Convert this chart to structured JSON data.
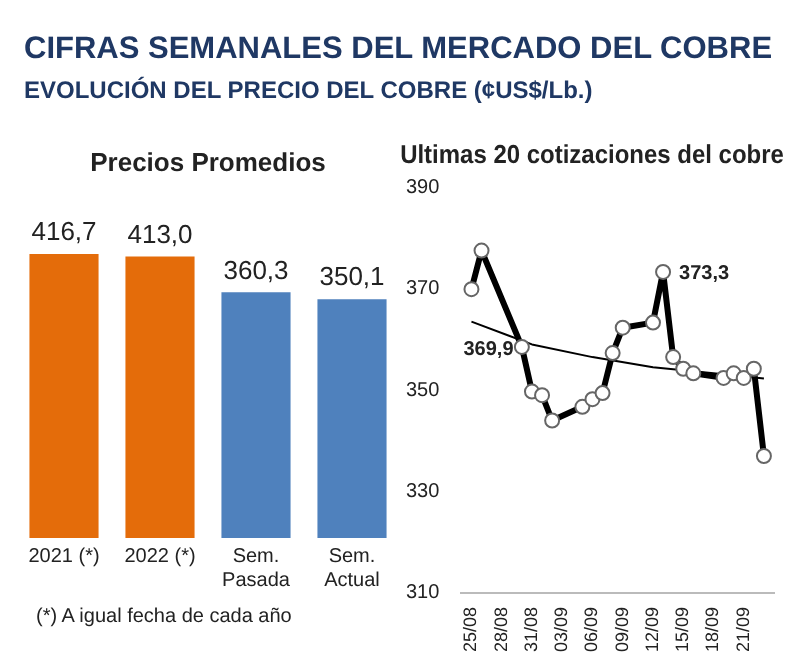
{
  "chart_data": [
    {
      "type": "other",
      "title": "CIFRAS SEMANALES DEL MERCADO DEL COBRE",
      "subtitle": "EVOLUCIÓN DEL PRECIO DEL COBRE (¢US$/Lb.)"
    },
    {
      "type": "bar",
      "title": "Precios Promedios",
      "categories": [
        "2021 (*)",
        "2022 (*)",
        "Sem. Pasada",
        "Sem. Actual"
      ],
      "values": [
        416.7,
        413.0,
        360.3,
        350.1
      ],
      "value_labels": [
        "416,7",
        "413,0",
        "360,3",
        "350,1"
      ],
      "colors": [
        "#e46c0a",
        "#e46c0a",
        "#4f81bd",
        "#4f81bd"
      ],
      "tick_labels": "x",
      "grid": false,
      "legend": false,
      "annotations": [
        "(*) A igual fecha de cada año"
      ]
    },
    {
      "type": "line",
      "title": "Ultimas 20 cotizaciones del cobre",
      "x": [
        "--08-25",
        "--08-26",
        "--08-30",
        "--08-31",
        "--09-01",
        "--09-02",
        "--09-05",
        "--09-06",
        "--09-07",
        "--09-08",
        "--09-09",
        "--09-12",
        "--09-13",
        "--09-14",
        "--09-15",
        "--09-16",
        "--09-19",
        "--09-20",
        "--09-21",
        "--09-22",
        "--09-23"
      ],
      "series": [
        {
          "type": "line",
          "color": "#000000",
          "marker": "circle",
          "values": [
            369.9,
            377.5,
            358.5,
            349.7,
            349,
            344,
            346.7,
            348.2,
            349.4,
            357.3,
            362.3,
            363.3,
            373.3,
            356.5,
            354.2,
            353.3,
            352.4,
            353.3,
            352.4,
            354.2,
            337
          ]
        },
        {
          "type": "line",
          "color": "#000000",
          "marker": "none",
          "x": [
            "--08-25",
            "--08-31",
            "--09-06",
            "--09-12",
            "--09-18",
            "--09-23"
          ],
          "values": [
            363.5,
            359,
            356.5,
            354.5,
            353.3,
            352.3
          ]
        }
      ],
      "xlim": [
        "--08-24",
        "--09-24"
      ],
      "xticks": [
        {
          "value": "--08-25",
          "label": "25/08"
        },
        {
          "value": "--08-28",
          "label": "28/08"
        },
        {
          "value": "--08-31",
          "label": "31/08"
        },
        {
          "value": "--09-03",
          "label": "03/09"
        },
        {
          "value": "--09-06",
          "label": "06/09"
        },
        {
          "value": "--09-09",
          "label": "09/09"
        },
        {
          "value": "--09-12",
          "label": "12/09"
        },
        {
          "value": "--09-15",
          "label": "15/09"
        },
        {
          "value": "--09-18",
          "label": "18/09"
        },
        {
          "value": "--09-21",
          "label": "21/09"
        }
      ],
      "ylim": [
        310,
        390
      ],
      "yticks": [
        310,
        330,
        350,
        370,
        390
      ],
      "grid": false,
      "legend": false,
      "annotations": [
        {
          "text": "369,9",
          "x": "--08-25",
          "y": 369.9
        },
        {
          "text": "373,3",
          "x": "--09-13",
          "y": 373.3
        }
      ]
    }
  ]
}
